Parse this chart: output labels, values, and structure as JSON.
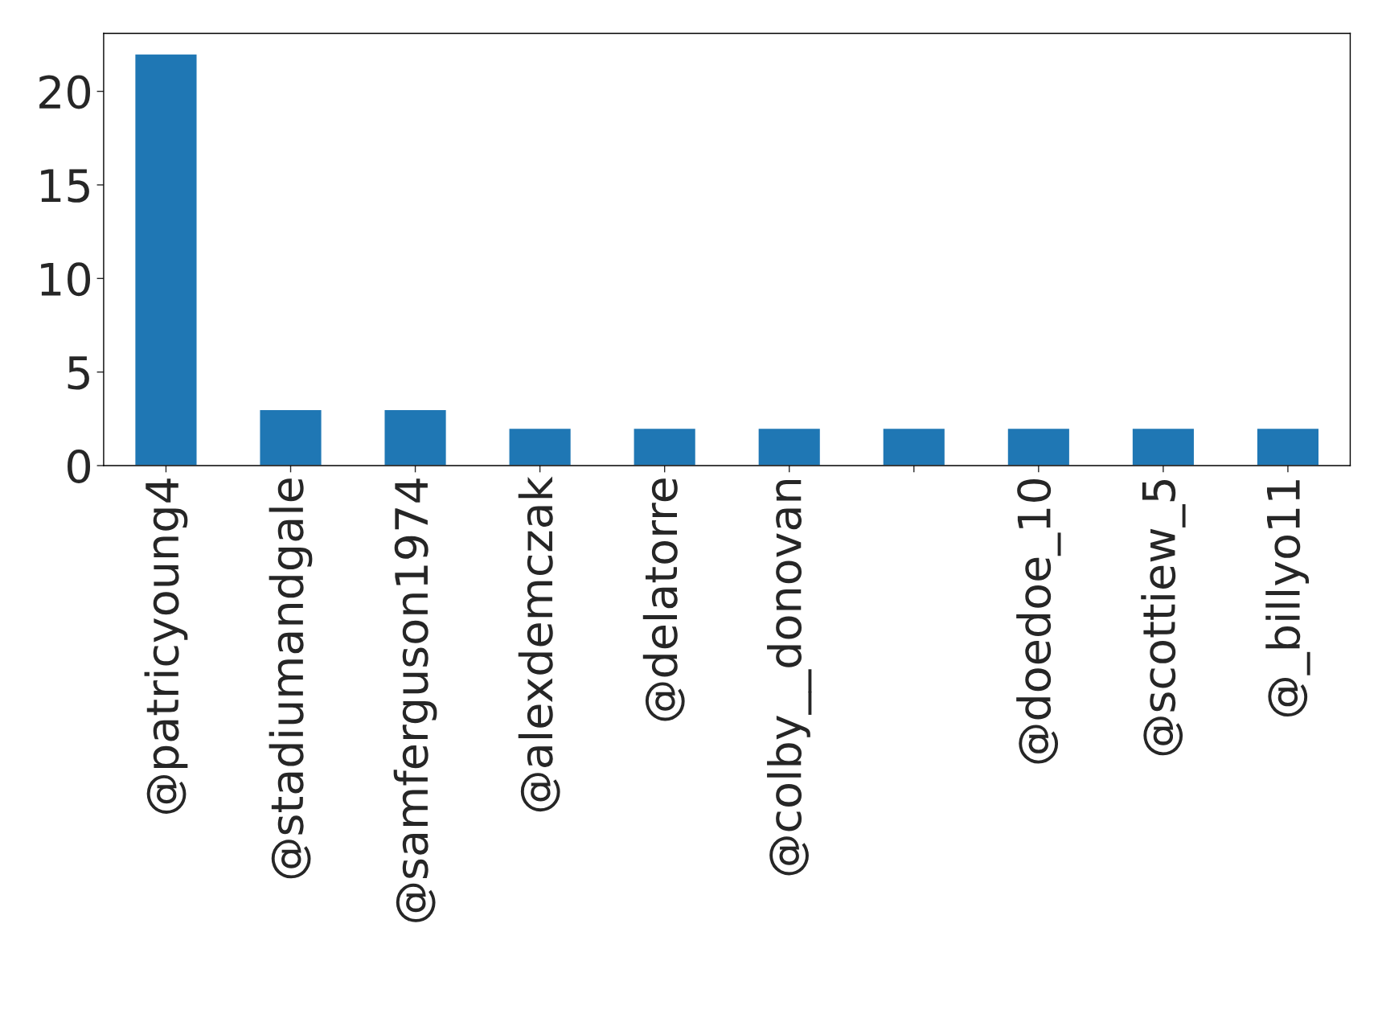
{
  "chart_data": {
    "type": "bar",
    "categories": [
      "@patricyoung4",
      "@stadiumandgale",
      "@samferguson1974",
      "@alexdemczak",
      "@delatorre",
      "@colby__donovan",
      null,
      "@doedoe_10",
      "@scottiew_5",
      "@_billyo11"
    ],
    "values": [
      22,
      3,
      3,
      2,
      2,
      2,
      2,
      2,
      2,
      2
    ],
    "color": "#1f77b4",
    "ylim": [
      0,
      23.1
    ],
    "yticks": [
      0,
      5,
      10,
      15,
      20
    ],
    "grid": false,
    "legend": false
  }
}
